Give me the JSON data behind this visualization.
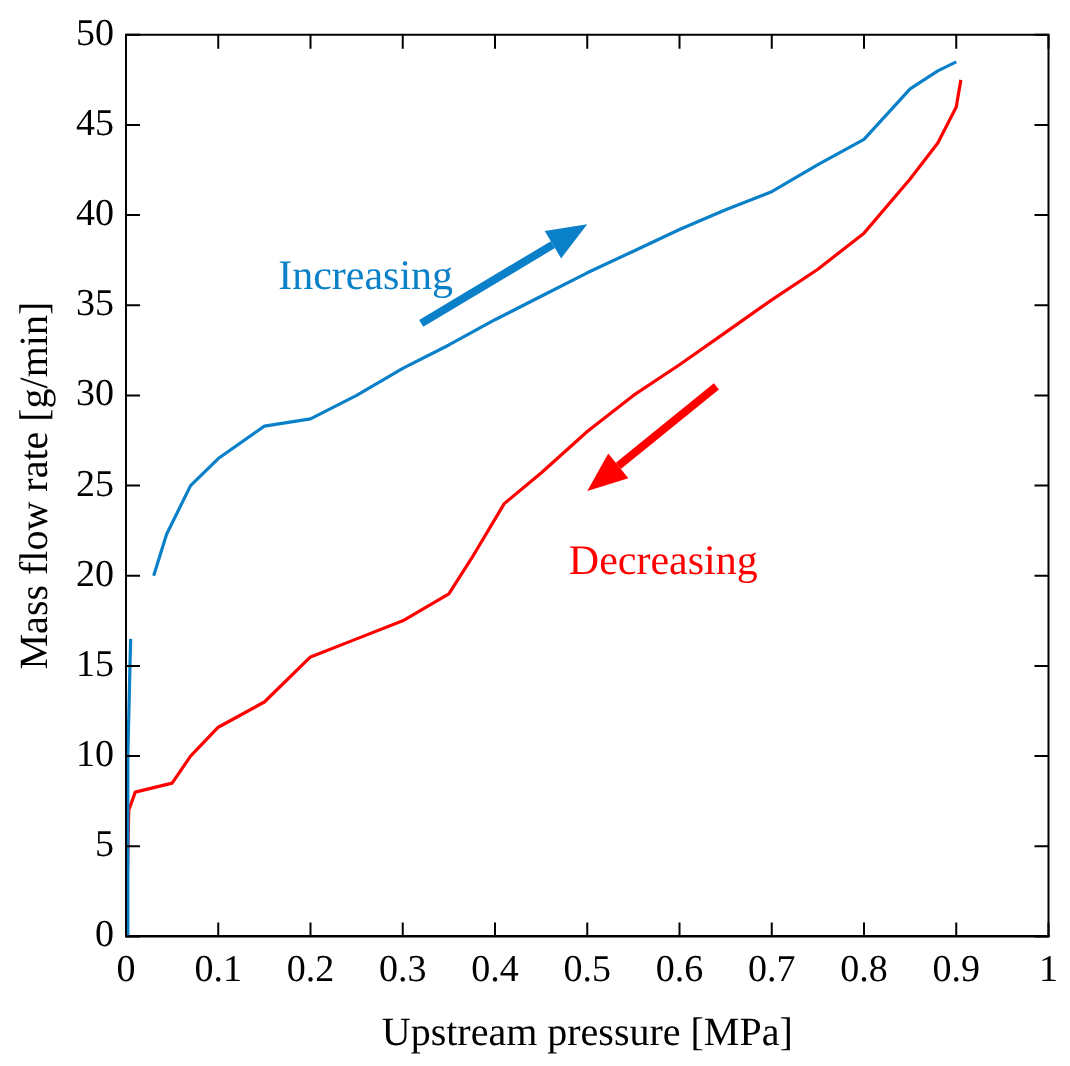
{
  "chart_data": {
    "type": "line",
    "xlabel": "Upstream pressure [MPa]",
    "ylabel": "Mass flow rate [g/min]",
    "xlim": [
      0,
      1
    ],
    "xticks": [
      0,
      0.1,
      0.2,
      0.3,
      0.4,
      0.5,
      0.6,
      0.7,
      0.8,
      0.9,
      1
    ],
    "ylim": [
      0,
      50
    ],
    "yticks": [
      0,
      5,
      10,
      15,
      20,
      25,
      30,
      35,
      40,
      45,
      50
    ],
    "grid": false,
    "legend": false,
    "marker": "none",
    "line_style": "solid",
    "annotations": [
      "Increasing",
      "Decreasing"
    ],
    "series": [
      {
        "color": "#0a80c8",
        "x": [
          0,
          0.002,
          0.005,
          0.006,
          0.03,
          0.044,
          0.07,
          0.1,
          0.15,
          0.2,
          0.25,
          0.3,
          0.35,
          0.4,
          0.45,
          0.5,
          0.55,
          0.6,
          0.65,
          0.7,
          0.75,
          0.8,
          0.85,
          0.88,
          0.9
        ],
        "values": [
          0,
          10,
          16.5,
          null,
          20,
          22.3,
          25,
          26.5,
          28.3,
          28.7,
          30,
          31.5,
          32.8,
          34.2,
          35.5,
          36.8,
          38,
          39.2,
          40.3,
          41.3,
          42.8,
          44.2,
          47,
          48,
          48.5
        ]
      },
      {
        "color": "#ff0000",
        "x": [
          0,
          0.003,
          0.01,
          0.05,
          0.07,
          0.1,
          0.15,
          0.2,
          0.25,
          0.3,
          0.35,
          0.375,
          0.41,
          0.45,
          0.5,
          0.55,
          0.6,
          0.65,
          0.7,
          0.75,
          0.8,
          0.85,
          0.88,
          0.9,
          0.905
        ],
        "values": [
          0,
          7,
          8,
          8.5,
          10,
          11.6,
          13,
          15.5,
          16.5,
          17.5,
          19,
          21,
          24,
          25.7,
          28,
          30,
          31.7,
          33.5,
          35.3,
          37,
          39,
          42,
          44,
          46,
          47.5
        ]
      }
    ]
  }
}
